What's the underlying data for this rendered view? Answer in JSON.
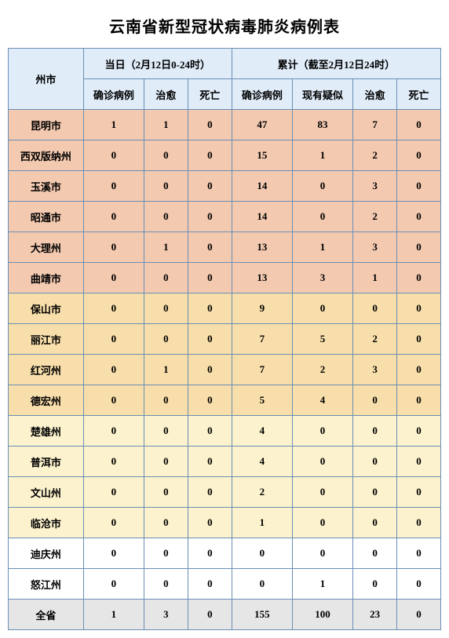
{
  "title": "云南省新型冠状病毒肺炎病例表",
  "header": {
    "city": "州市",
    "dayGroup": "当日（2月12日0-24时）",
    "cumGroup": "累计（截至2月12日24时）",
    "cols": {
      "dayConfirmed": "确诊病例",
      "dayCured": "治愈",
      "dayDeath": "死亡",
      "cumConfirmed": "确诊病例",
      "cumSuspect": "现有疑似",
      "cumCured": "治愈",
      "cumDeath": "死亡"
    }
  },
  "tiers": {
    "tier1_color": "#f3c9b0",
    "tier2_color": "#f8deaa",
    "tier3_color": "#fcf2cd",
    "tier4_color": "#ffffff",
    "total_color": "#e6e6e6",
    "header_color": "#e0ecf8",
    "border_color": "#6a8fb5"
  },
  "rows": [
    {
      "city": "昆明市",
      "dc": "1",
      "dh": "1",
      "dd": "0",
      "cc": "47",
      "cs": "83",
      "ch": "7",
      "cd": "0",
      "tier": "tier1"
    },
    {
      "city": "西双版纳州",
      "dc": "0",
      "dh": "0",
      "dd": "0",
      "cc": "15",
      "cs": "1",
      "ch": "2",
      "cd": "0",
      "tier": "tier1"
    },
    {
      "city": "玉溪市",
      "dc": "0",
      "dh": "0",
      "dd": "0",
      "cc": "14",
      "cs": "0",
      "ch": "3",
      "cd": "0",
      "tier": "tier1"
    },
    {
      "city": "昭通市",
      "dc": "0",
      "dh": "0",
      "dd": "0",
      "cc": "14",
      "cs": "0",
      "ch": "2",
      "cd": "0",
      "tier": "tier1"
    },
    {
      "city": "大理州",
      "dc": "0",
      "dh": "1",
      "dd": "0",
      "cc": "13",
      "cs": "1",
      "ch": "3",
      "cd": "0",
      "tier": "tier1"
    },
    {
      "city": "曲靖市",
      "dc": "0",
      "dh": "0",
      "dd": "0",
      "cc": "13",
      "cs": "3",
      "ch": "1",
      "cd": "0",
      "tier": "tier1"
    },
    {
      "city": "保山市",
      "dc": "0",
      "dh": "0",
      "dd": "0",
      "cc": "9",
      "cs": "0",
      "ch": "0",
      "cd": "0",
      "tier": "tier2"
    },
    {
      "city": "丽江市",
      "dc": "0",
      "dh": "0",
      "dd": "0",
      "cc": "7",
      "cs": "5",
      "ch": "2",
      "cd": "0",
      "tier": "tier2"
    },
    {
      "city": "红河州",
      "dc": "0",
      "dh": "1",
      "dd": "0",
      "cc": "7",
      "cs": "2",
      "ch": "3",
      "cd": "0",
      "tier": "tier2"
    },
    {
      "city": "德宏州",
      "dc": "0",
      "dh": "0",
      "dd": "0",
      "cc": "5",
      "cs": "4",
      "ch": "0",
      "cd": "0",
      "tier": "tier2"
    },
    {
      "city": "楚雄州",
      "dc": "0",
      "dh": "0",
      "dd": "0",
      "cc": "4",
      "cs": "0",
      "ch": "0",
      "cd": "0",
      "tier": "tier3"
    },
    {
      "city": "普洱市",
      "dc": "0",
      "dh": "0",
      "dd": "0",
      "cc": "4",
      "cs": "0",
      "ch": "0",
      "cd": "0",
      "tier": "tier3"
    },
    {
      "city": "文山州",
      "dc": "0",
      "dh": "0",
      "dd": "0",
      "cc": "2",
      "cs": "0",
      "ch": "0",
      "cd": "0",
      "tier": "tier3"
    },
    {
      "city": "临沧市",
      "dc": "0",
      "dh": "0",
      "dd": "0",
      "cc": "1",
      "cs": "0",
      "ch": "0",
      "cd": "0",
      "tier": "tier3"
    },
    {
      "city": "迪庆州",
      "dc": "0",
      "dh": "0",
      "dd": "0",
      "cc": "0",
      "cs": "0",
      "ch": "0",
      "cd": "0",
      "tier": "tier4"
    },
    {
      "city": "怒江州",
      "dc": "0",
      "dh": "0",
      "dd": "0",
      "cc": "0",
      "cs": "1",
      "ch": "0",
      "cd": "0",
      "tier": "tier4"
    }
  ],
  "total": {
    "city": "全省",
    "dc": "1",
    "dh": "3",
    "dd": "0",
    "cc": "155",
    "cs": "100",
    "ch": "23",
    "cd": "0"
  }
}
